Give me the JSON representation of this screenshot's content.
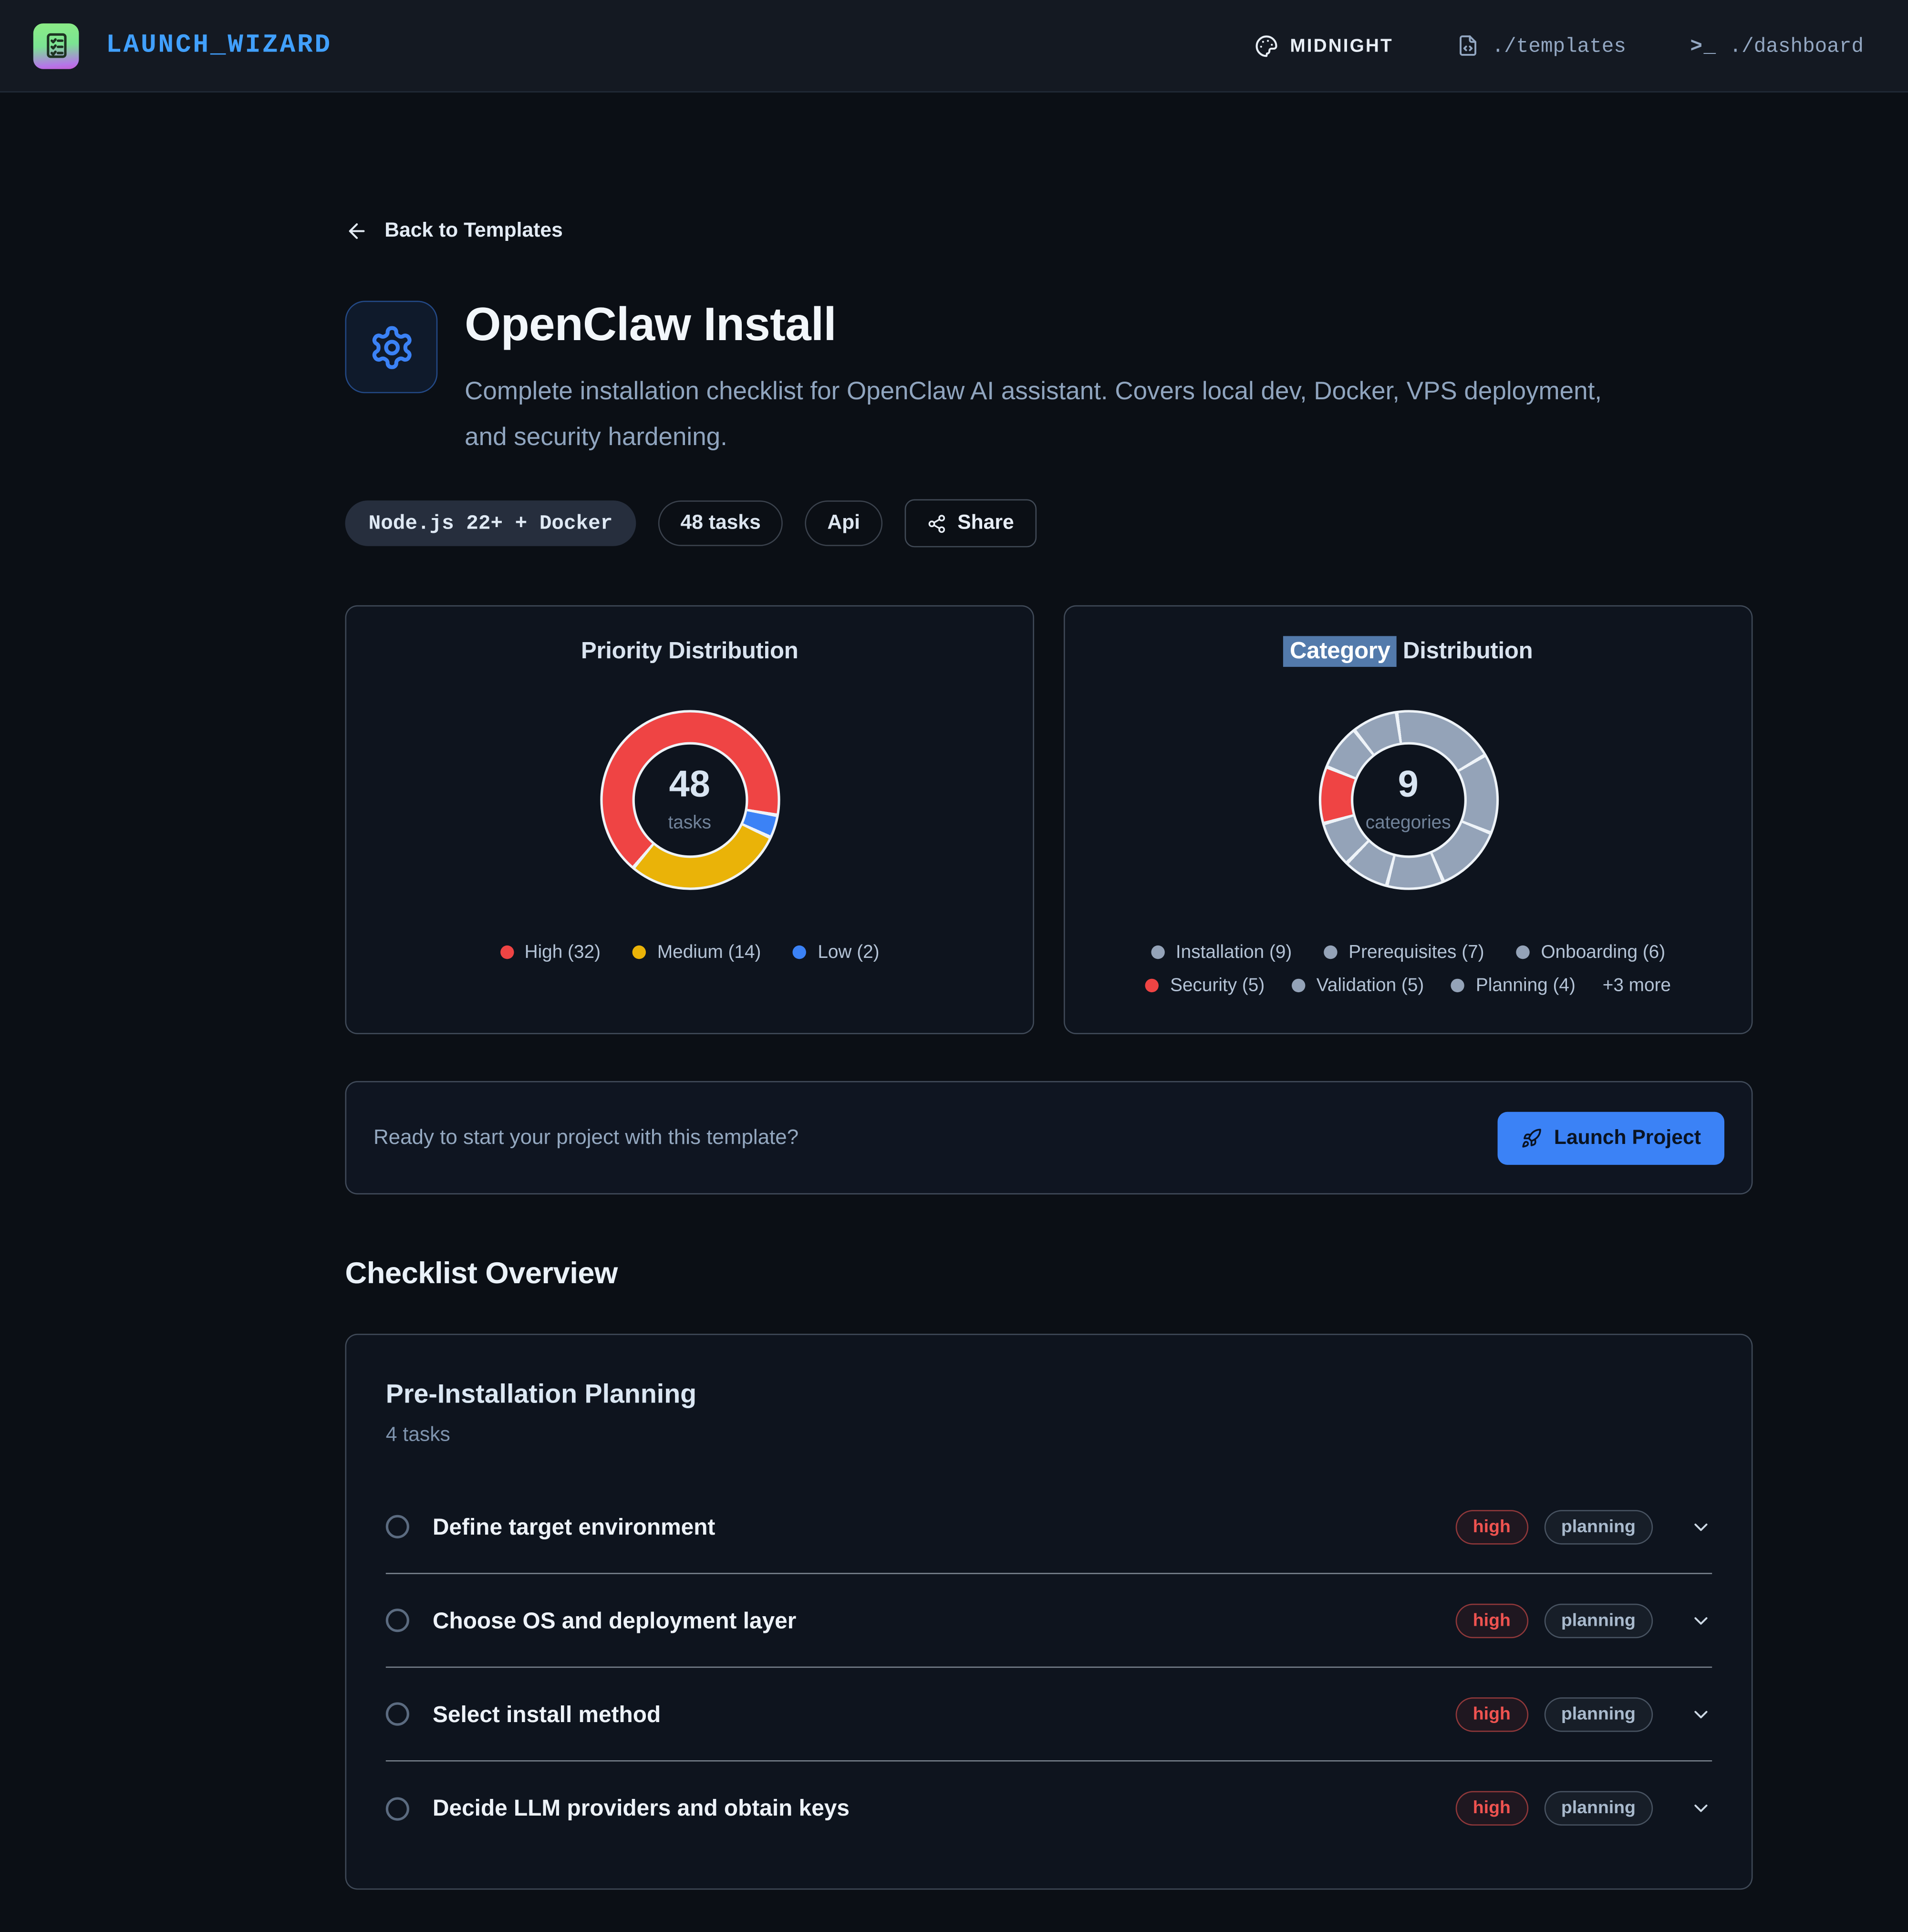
{
  "colors": {
    "accent": "#3b82f6",
    "brand_blue": "#41a0ff",
    "high_red": "#ef4444",
    "slice_gray": "#94a3b8"
  },
  "navbar": {
    "brand": "LAUNCH_WIZARD",
    "theme_label": "MIDNIGHT",
    "nav_templates": "./templates",
    "terminal_glyph": ">_",
    "nav_dashboard": "./dashboard"
  },
  "header": {
    "back_link": "Back to Templates",
    "title": "OpenClaw Install",
    "description": "Complete installation checklist for OpenClaw AI assistant. Covers local dev, Docker, VPS deployment, and security hardening.",
    "badge_stack": "Node.js 22+ + Docker",
    "badge_tasks": "48 tasks",
    "badge_category": "Api",
    "share_label": "Share"
  },
  "chart_data": [
    {
      "type": "pie",
      "title": "Priority Distribution",
      "center_value": "48",
      "center_label": "tasks",
      "legend_position": "bottom",
      "series": [
        {
          "name": "High",
          "value": 32,
          "color": "#ef4444"
        },
        {
          "name": "Medium",
          "value": 14,
          "color": "#eab308"
        },
        {
          "name": "Low",
          "value": 2,
          "color": "#3b82f6"
        }
      ],
      "legend_rows": [
        [
          {
            "text": "High (32)",
            "color": "#ef4444"
          },
          {
            "text": "Medium (14)",
            "color": "#eab308"
          },
          {
            "text": "Low (2)",
            "color": "#3b82f6"
          }
        ]
      ],
      "draw": {
        "rotation": 100,
        "gap_deg": 2.4,
        "border_color": "#eef3f8",
        "segments": [
          {
            "value": 2,
            "color": "#3b82f6"
          },
          {
            "value": 14,
            "color": "#eab308"
          },
          {
            "value": 32,
            "color": "#ef4444"
          }
        ]
      }
    },
    {
      "type": "pie",
      "title": "Category Distribution",
      "title_highlight": "Category",
      "title_rest": " Distribution",
      "center_value": "9",
      "center_label": "categories",
      "legend_position": "bottom",
      "series": [
        {
          "name": "Installation",
          "value": 9,
          "color": "#94a3b8"
        },
        {
          "name": "Prerequisites",
          "value": 7,
          "color": "#94a3b8"
        },
        {
          "name": "Onboarding",
          "value": 6,
          "color": "#94a3b8"
        },
        {
          "name": "Security",
          "value": 5,
          "color": "#ef4444"
        },
        {
          "name": "Validation",
          "value": 5,
          "color": "#94a3b8"
        },
        {
          "name": "Planning",
          "value": 4,
          "color": "#94a3b8"
        }
      ],
      "more_label": "+3 more",
      "legend_rows": [
        [
          {
            "text": "Installation (9)",
            "color": "#94a3b8"
          },
          {
            "text": "Prerequisites (7)",
            "color": "#94a3b8"
          },
          {
            "text": "Onboarding (6)",
            "color": "#94a3b8"
          }
        ],
        [
          {
            "text": "Security (5)",
            "color": "#ef4444"
          },
          {
            "text": "Validation (5)",
            "color": "#94a3b8"
          },
          {
            "text": "Planning (4)",
            "color": "#94a3b8"
          },
          {
            "text": "+3 more",
            "color": null
          }
        ]
      ],
      "draw": {
        "rotation": -8,
        "gap_deg": 2.4,
        "border_color": "#eef3f8",
        "segments": [
          {
            "value": 9,
            "color": "#94a3b8"
          },
          {
            "value": 7,
            "color": "#94a3b8"
          },
          {
            "value": 6,
            "color": "#94a3b8"
          },
          {
            "value": 5,
            "color": "#94a3b8"
          },
          {
            "value": 4,
            "color": "#94a3b8"
          },
          {
            "value": 4,
            "color": "#94a3b8"
          },
          {
            "value": 5,
            "color": "#ef4444"
          },
          {
            "value": 4,
            "color": "#94a3b8"
          },
          {
            "value": 4,
            "color": "#94a3b8"
          }
        ]
      }
    }
  ],
  "launch": {
    "prompt": "Ready to start your project with this template?",
    "button_label": "Launch Project"
  },
  "checklist": {
    "heading": "Checklist Overview",
    "group": {
      "title": "Pre-Installation Planning",
      "count": "4 tasks",
      "tasks": [
        {
          "title": "Define target environment",
          "priority": "high",
          "category": "planning"
        },
        {
          "title": "Choose OS and deployment layer",
          "priority": "high",
          "category": "planning"
        },
        {
          "title": "Select install method",
          "priority": "high",
          "category": "planning"
        },
        {
          "title": "Decide LLM providers and obtain keys",
          "priority": "high",
          "category": "planning"
        }
      ]
    }
  }
}
